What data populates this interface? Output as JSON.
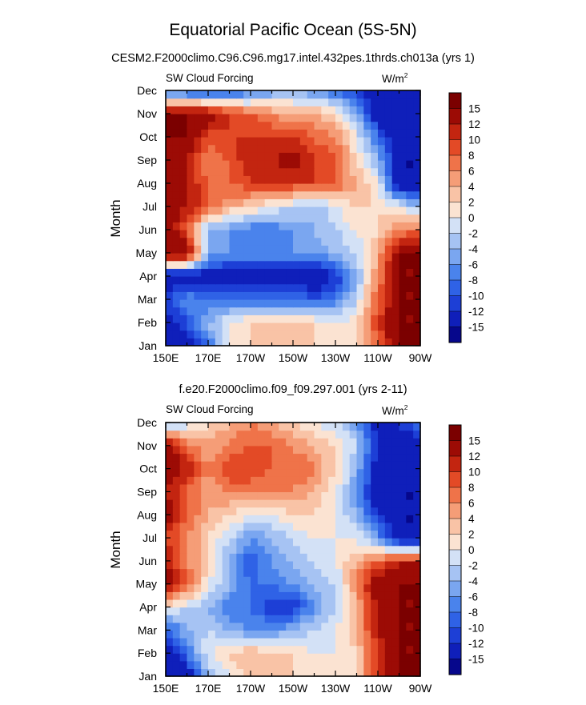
{
  "main_title": "Equatorial Pacific Ocean (5S-5N)",
  "chart_data": [
    {
      "type": "heatmap",
      "title": "CESM2.F2000climo.C96.C96.mg17.intel.432pes.1thrds.ch013a (yrs 1)",
      "left_label": "SW Cloud Forcing",
      "units": "W/m",
      "units_exp": "2",
      "xlabel": "",
      "ylabel": "Month",
      "x_ticks": [
        "150E",
        "170E",
        "170W",
        "150W",
        "130W",
        "110W",
        "90W"
      ],
      "y_ticks": [
        "Jan",
        "Feb",
        "Mar",
        "Apr",
        "May",
        "Jun",
        "Jul",
        "Aug",
        "Sep",
        "Oct",
        "Nov",
        "Dec"
      ],
      "x": [
        150,
        160,
        170,
        180,
        190,
        200,
        210,
        220,
        230,
        240,
        250,
        260,
        270
      ],
      "values": [
        [
          -15,
          -15,
          -8,
          0,
          2,
          2,
          2,
          2,
          2,
          2,
          8,
          15,
          15
        ],
        [
          -15,
          -10,
          -4,
          0,
          2,
          2,
          2,
          2,
          0,
          2,
          10,
          15,
          15
        ],
        [
          -10,
          -6,
          -8,
          -8,
          -8,
          -8,
          -8,
          -10,
          -8,
          -2,
          8,
          15,
          15
        ],
        [
          -15,
          -15,
          -15,
          -15,
          -15,
          -15,
          -15,
          -15,
          -12,
          -4,
          6,
          15,
          15
        ],
        [
          15,
          15,
          -4,
          -6,
          -6,
          -6,
          -6,
          -6,
          -4,
          -2,
          4,
          15,
          15
        ],
        [
          15,
          8,
          -4,
          -6,
          -8,
          -8,
          -6,
          -4,
          -2,
          0,
          2,
          6,
          8
        ],
        [
          15,
          12,
          8,
          4,
          2,
          0,
          -2,
          -4,
          0,
          2,
          2,
          0,
          -4
        ],
        [
          15,
          12,
          8,
          8,
          10,
          10,
          10,
          10,
          8,
          4,
          0,
          -15,
          -15
        ],
        [
          15,
          12,
          6,
          8,
          12,
          12,
          14,
          10,
          8,
          2,
          -4,
          -15,
          -15
        ],
        [
          15,
          15,
          8,
          10,
          10,
          10,
          10,
          8,
          6,
          0,
          -8,
          -15,
          -15
        ],
        [
          15,
          15,
          15,
          10,
          8,
          6,
          4,
          4,
          2,
          -4,
          -15,
          -15,
          -15
        ],
        [
          -8,
          -10,
          -12,
          -10,
          -8,
          -6,
          -4,
          -6,
          -8,
          -12,
          -15,
          -15,
          -15
        ]
      ],
      "levels": [
        -15,
        -12,
        -10,
        -8,
        -6,
        -4,
        -2,
        0,
        2,
        4,
        6,
        8,
        10,
        12,
        15
      ],
      "colorbar_labels": [
        "15",
        "12",
        "10",
        "8",
        "6",
        "4",
        "2",
        "0",
        "-2",
        "-4",
        "-6",
        "-8",
        "-10",
        "-12",
        "-15"
      ]
    },
    {
      "type": "heatmap",
      "title": "f.e20.F2000climo.f09_f09.297.001 (yrs 2-11)",
      "left_label": "SW Cloud Forcing",
      "units": "W/m",
      "units_exp": "2",
      "xlabel": "",
      "ylabel": "Month",
      "x_ticks": [
        "150E",
        "170E",
        "170W",
        "150W",
        "130W",
        "110W",
        "90W"
      ],
      "y_ticks": [
        "Jan",
        "Feb",
        "Mar",
        "Apr",
        "May",
        "Jun",
        "Jul",
        "Aug",
        "Sep",
        "Oct",
        "Nov",
        "Dec"
      ],
      "x": [
        150,
        160,
        170,
        180,
        190,
        200,
        210,
        220,
        230,
        240,
        250,
        260,
        270
      ],
      "values": [
        [
          -15,
          -15,
          -4,
          0,
          2,
          2,
          2,
          2,
          0,
          2,
          10,
          15,
          15
        ],
        [
          -15,
          -8,
          0,
          2,
          4,
          2,
          2,
          0,
          0,
          2,
          10,
          15,
          15
        ],
        [
          -10,
          -4,
          -2,
          -4,
          -6,
          -6,
          -4,
          -2,
          0,
          4,
          12,
          15,
          15
        ],
        [
          0,
          -2,
          -4,
          -8,
          -8,
          -12,
          -12,
          -6,
          -2,
          4,
          12,
          15,
          15
        ],
        [
          15,
          8,
          0,
          -4,
          -8,
          -8,
          -6,
          -4,
          -2,
          6,
          15,
          15,
          15
        ],
        [
          12,
          6,
          2,
          -4,
          -10,
          -6,
          -4,
          -2,
          0,
          4,
          8,
          12,
          12
        ],
        [
          10,
          6,
          2,
          -2,
          -6,
          -4,
          -2,
          0,
          0,
          0,
          -6,
          -15,
          -15
        ],
        [
          14,
          8,
          4,
          2,
          0,
          0,
          2,
          2,
          0,
          -4,
          -12,
          -15,
          -15
        ],
        [
          12,
          8,
          4,
          6,
          6,
          6,
          6,
          4,
          0,
          -6,
          -15,
          -15,
          -15
        ],
        [
          15,
          12,
          6,
          10,
          10,
          8,
          8,
          6,
          2,
          -4,
          -15,
          -15,
          -15
        ],
        [
          15,
          8,
          4,
          6,
          8,
          8,
          6,
          4,
          2,
          -2,
          -12,
          -15,
          -15
        ],
        [
          -4,
          -2,
          2,
          4,
          6,
          4,
          2,
          0,
          -2,
          -6,
          -15,
          -12,
          -8
        ]
      ],
      "levels": [
        -15,
        -12,
        -10,
        -8,
        -6,
        -4,
        -2,
        0,
        2,
        4,
        6,
        8,
        10,
        12,
        15
      ],
      "colorbar_labels": [
        "15",
        "12",
        "10",
        "8",
        "6",
        "4",
        "2",
        "0",
        "-2",
        "-4",
        "-6",
        "-8",
        "-10",
        "-12",
        "-15"
      ]
    }
  ],
  "colors": {
    "palette": [
      "#06078c",
      "#0f1fba",
      "#1d3fd6",
      "#2f62e6",
      "#4a83ec",
      "#7aa6f0",
      "#a6c3f3",
      "#d3e1f6",
      "#fbe3d2",
      "#f9c3a6",
      "#f59d77",
      "#ef7349",
      "#e34a26",
      "#c32510",
      "#9c0b05",
      "#7b0000"
    ]
  }
}
